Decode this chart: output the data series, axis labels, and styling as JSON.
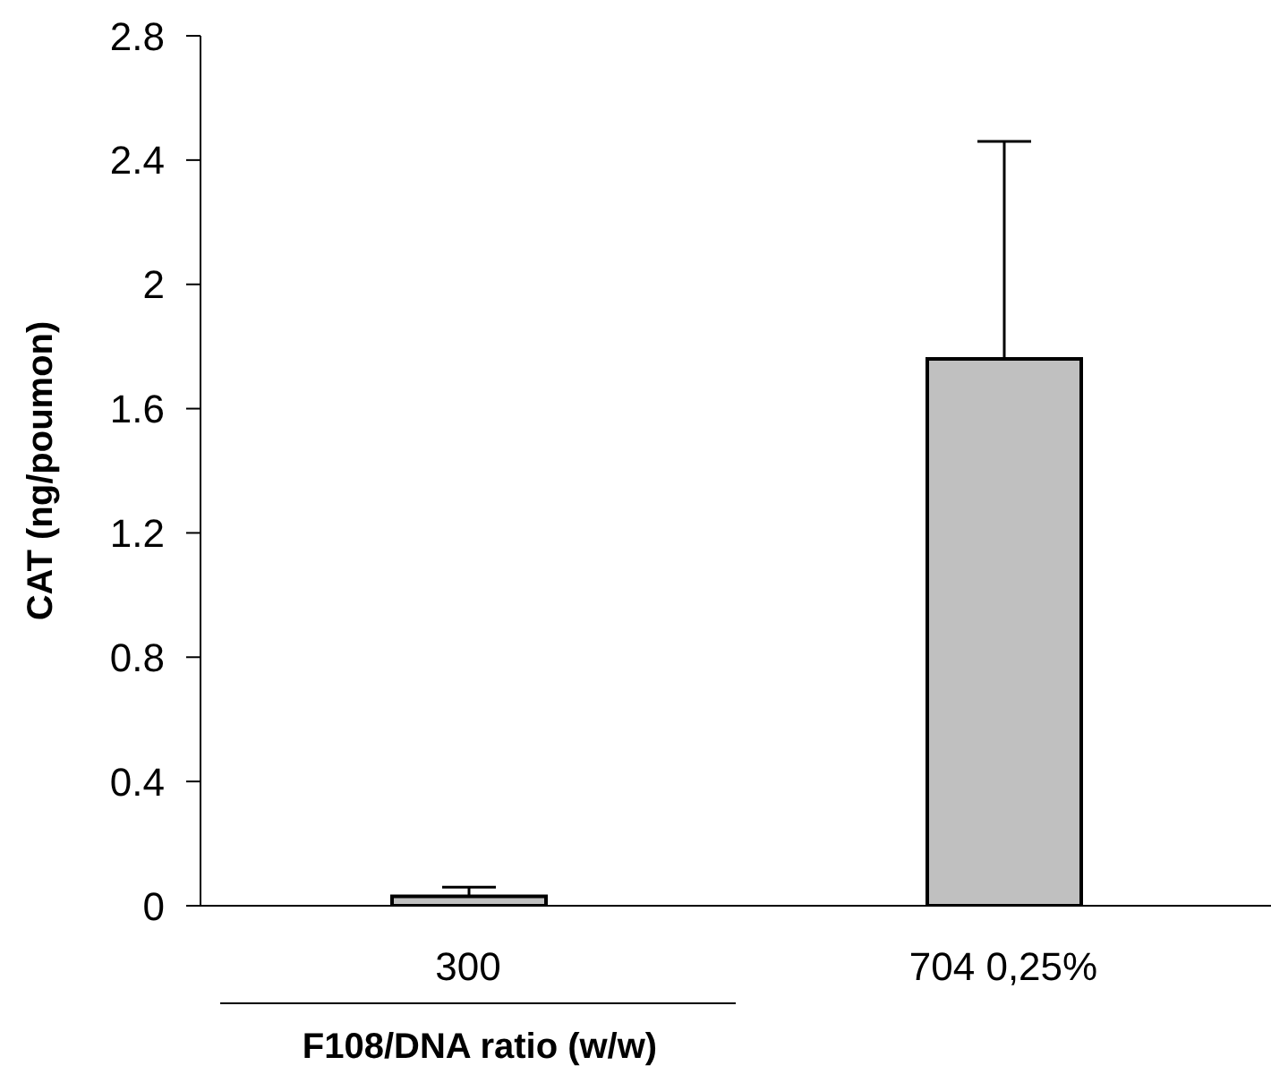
{
  "chart_data": {
    "type": "bar",
    "xlabel": "F108/DNA ratio (w/w)",
    "ylabel": "CAT (ng/poumon)",
    "categories": [
      "300",
      "704 0,25%"
    ],
    "values": [
      0.03,
      1.76
    ],
    "errors": [
      [
        0.03,
        0.06
      ],
      [
        1.76,
        2.46
      ]
    ],
    "color": "#c0c0c0",
    "ylim": [
      0,
      2.8
    ],
    "yticks": [
      0,
      0.4,
      0.8,
      1.2,
      1.6,
      2,
      2.4,
      2.8
    ],
    "grid": false
  }
}
